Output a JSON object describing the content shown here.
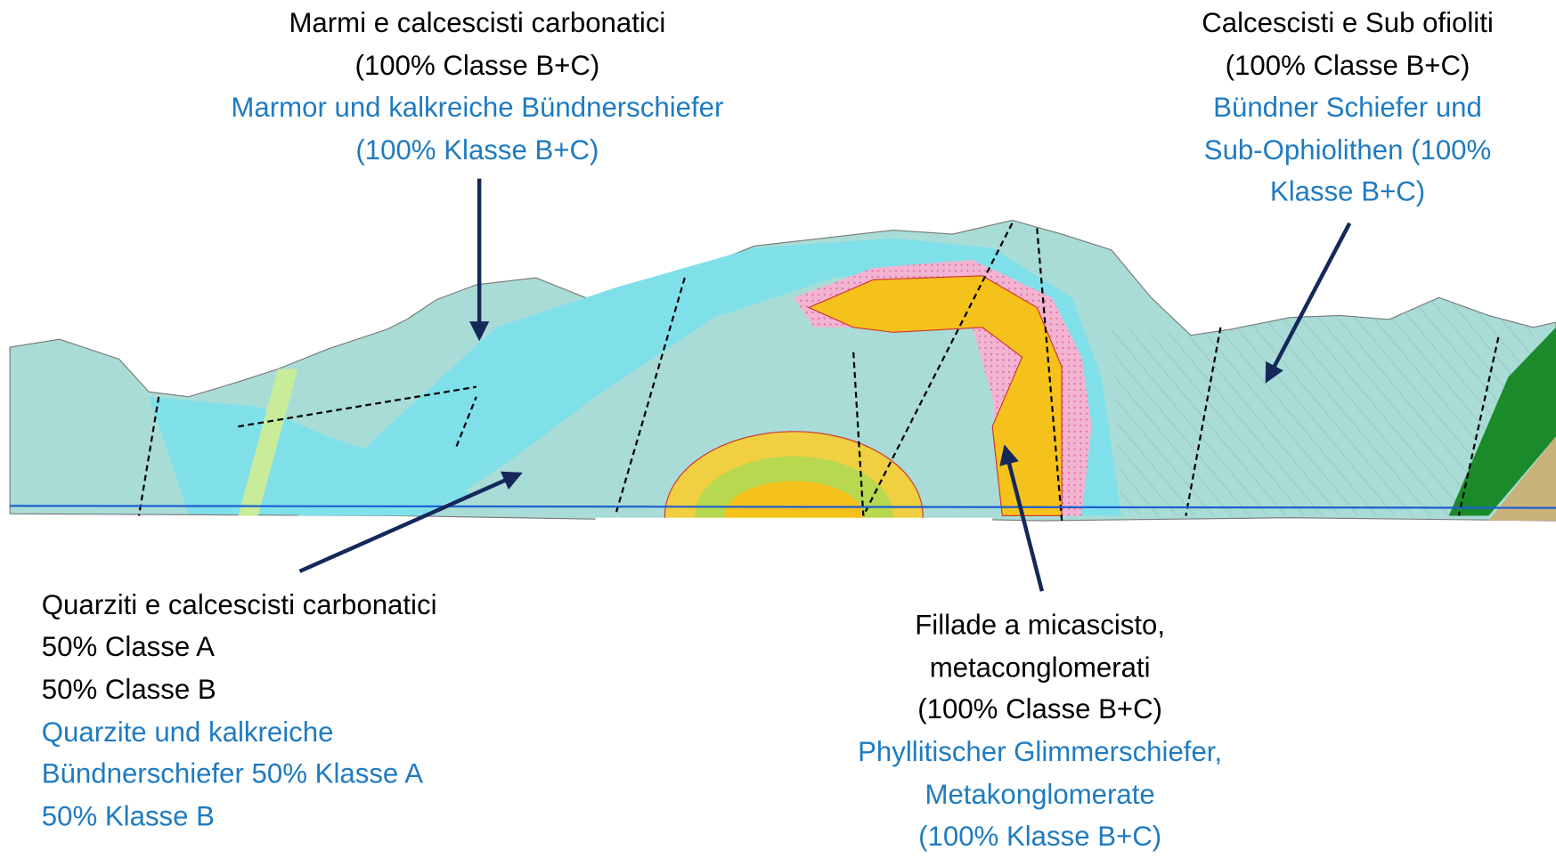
{
  "annotations": [
    {
      "italian": [
        "Marmi e calcescisti carbonatici",
        "(100% Classe B+C)"
      ],
      "german": [
        "Marmor und kalkreiche Bündnerschiefer",
        "(100% Klasse B+C)"
      ]
    },
    {
      "italian": [
        "Calcescisti e Sub ofioliti",
        "(100% Classe B+C)"
      ],
      "german": [
        "Bündner Schiefer und",
        "Sub-Ophiolithen (100%",
        "Klasse B+C)"
      ]
    },
    {
      "italian": [
        "Quarziti e calcescisti carbonatici",
        "50% Classe A",
        "50% Classe B"
      ],
      "german": [
        "Quarzite und kalkreiche",
        "Bündnerschiefer 50% Klasse A",
        "50% Klasse B"
      ]
    },
    {
      "italian": [
        "Fillade a micascisto,",
        "metaconglomerati",
        "(100% Classe B+C)"
      ],
      "german": [
        "Phyllitischer Glimmerschiefer,",
        "Metakonglomerate",
        "(100% Klasse B+C)"
      ]
    }
  ]
}
